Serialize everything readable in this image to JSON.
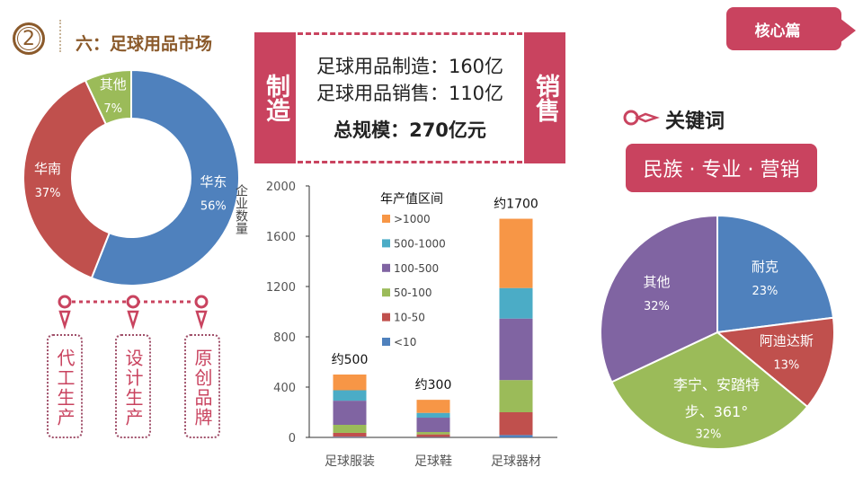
{
  "header": {
    "number": "2",
    "title": "六：足球用品市场"
  },
  "core_tag": "核心篇",
  "summary": {
    "left_label": "制造",
    "right_label": "销售",
    "line1": "足球用品制造：160亿",
    "line2": "足球用品销售：110亿",
    "total": "总规模：270亿元"
  },
  "keywords": {
    "title": "关键词",
    "value": "民族 · 专业 · 营销",
    "icon": "key-icon"
  },
  "flow": {
    "steps": [
      "代工生产",
      "设计生产",
      "原创品牌"
    ]
  },
  "colors": {
    "accent": "#c9435f",
    "brown": "#8b5a2b",
    "blue": "#4f81bd",
    "red": "#c0504d",
    "green": "#9bbb59",
    "purple": "#8064a2",
    "cyan": "#4bacc6",
    "orange": "#f79646"
  },
  "chart_data": [
    {
      "type": "pie",
      "variant": "donut",
      "slices": [
        {
          "label": "华东",
          "value": 56,
          "text": "56%",
          "color": "#4f81bd"
        },
        {
          "label": "华南",
          "value": 37,
          "text": "37%",
          "color": "#c0504d"
        },
        {
          "label": "其他",
          "value": 7,
          "text": "7%",
          "color": "#9bbb59"
        }
      ]
    },
    {
      "type": "bar",
      "stacked": true,
      "ylabel": "企业数量",
      "ylim": [
        0,
        2000
      ],
      "yticks": [
        0,
        400,
        800,
        1200,
        1600,
        2000
      ],
      "categories": [
        "足球服装",
        "足球鞋",
        "足球器材"
      ],
      "totals": [
        "约500",
        "约300",
        "约1700"
      ],
      "legend_title": "年产值区间",
      "legend_placement": "inside-top-left",
      "series": [
        {
          "name": "<10",
          "color": "#4f81bd",
          "values": [
            5,
            3,
            19
          ]
        },
        {
          "name": "10-50",
          "color": "#c0504d",
          "values": [
            31,
            21,
            181
          ]
        },
        {
          "name": "50-100",
          "color": "#9bbb59",
          "values": [
            64,
            19,
            256
          ]
        },
        {
          "name": "100-500",
          "color": "#8064a2",
          "values": [
            192,
            114,
            489
          ]
        },
        {
          "name": "500-1000",
          "color": "#4bacc6",
          "values": [
            83,
            38,
            243
          ]
        },
        {
          "name": ">1000",
          "color": "#f79646",
          "values": [
            125,
            104,
            551
          ]
        }
      ]
    },
    {
      "type": "pie",
      "slices": [
        {
          "label": "耐克",
          "value": 23,
          "text": "23%",
          "color": "#4f81bd"
        },
        {
          "label": "阿迪达斯",
          "value": 13,
          "text": "13%",
          "color": "#c0504d"
        },
        {
          "label": "李宁、安踏特步、361°",
          "label_lines": [
            "李宁、安踏特",
            "步、361°"
          ],
          "value": 32,
          "text": "32%",
          "color": "#9bbb59"
        },
        {
          "label": "其他",
          "value": 32,
          "text": "32%",
          "color": "#8064a2"
        }
      ]
    }
  ]
}
